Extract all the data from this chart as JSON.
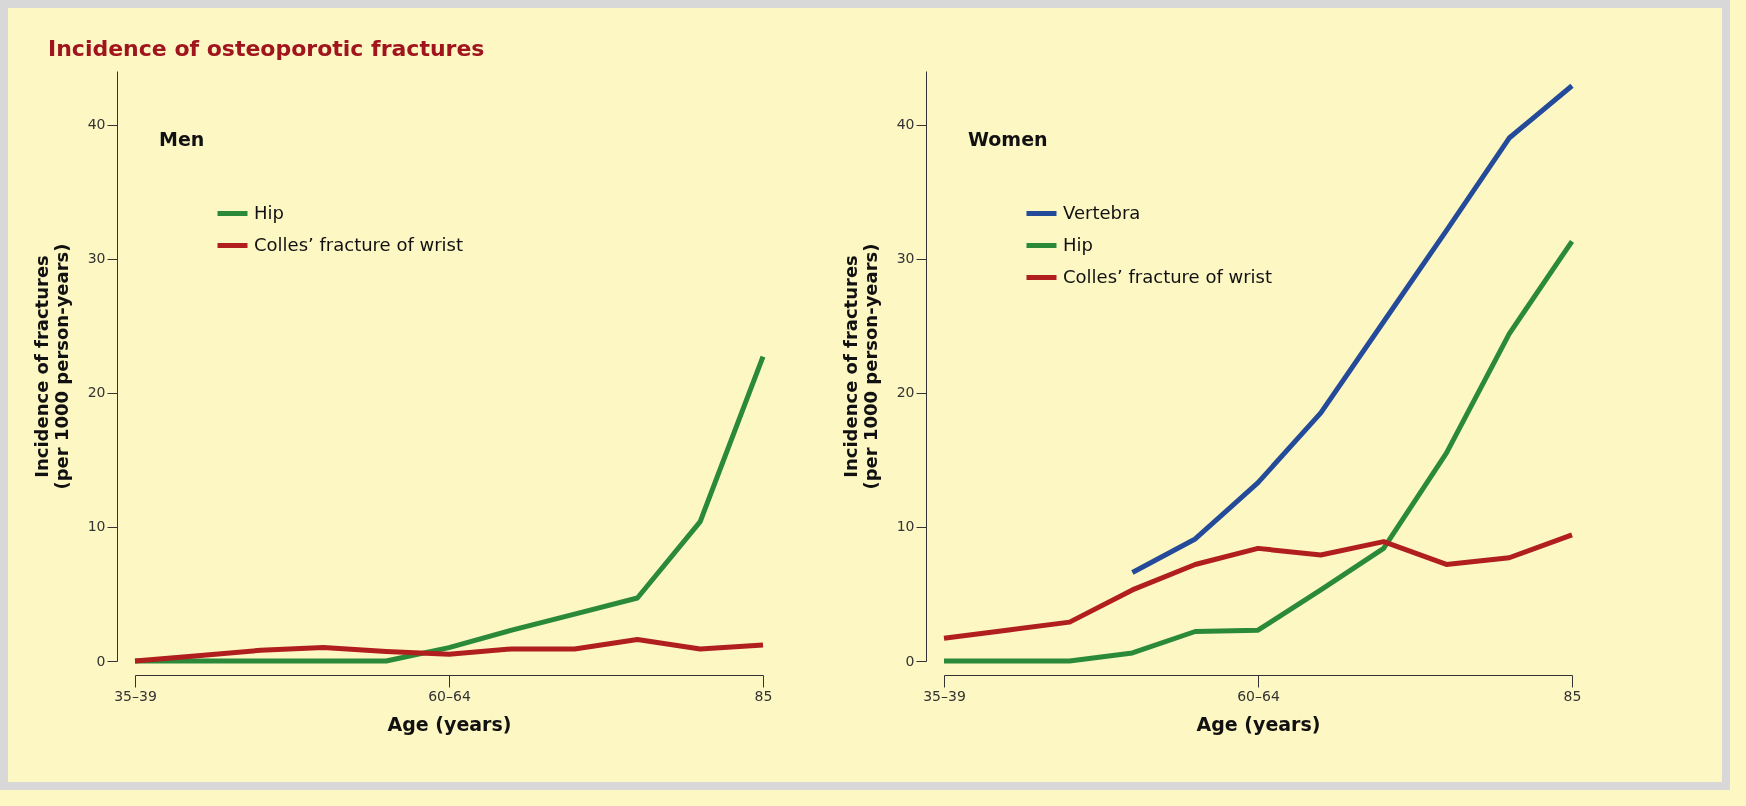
{
  "chart_data": [
    {
      "type": "line",
      "title": "Incidence of osteoporotic fractures",
      "subtitle": "Men",
      "xlabel": "Age (years)",
      "ylabel": "Incidence of fractures\n(per 1000 person-years)",
      "categories": [
        "35–39",
        null,
        null,
        null,
        null,
        "60–64",
        null,
        null,
        null,
        null,
        "85"
      ],
      "ylim": [
        0,
        44
      ],
      "yticks": [
        0,
        10,
        20,
        30,
        40
      ],
      "grid": false,
      "legend": "top left",
      "line_style": "solid",
      "series": [
        {
          "name": "Hip",
          "color": "#2a8a3a",
          "values": [
            0,
            0,
            0,
            0,
            0,
            1,
            2.3,
            3.5,
            4.7,
            10.4,
            22.7
          ]
        },
        {
          "name": "Colles’ fracture of wrist",
          "color": "#b01e1e",
          "values": [
            0,
            0.4,
            0.8,
            1,
            0.7,
            0.5,
            0.9,
            0.9,
            1.6,
            0.9,
            1.2
          ]
        }
      ]
    },
    {
      "type": "line",
      "subtitle": "Women",
      "xlabel": "Age (years)",
      "ylabel": "Incidence of fractures\n(per 1000 person-years)",
      "categories": [
        "35–39",
        null,
        null,
        null,
        null,
        "60–64",
        null,
        null,
        null,
        null,
        "85"
      ],
      "ylim": [
        0,
        44
      ],
      "yticks": [
        0,
        10,
        20,
        30,
        40
      ],
      "grid": false,
      "legend": "top left",
      "line_style": "solid",
      "series": [
        {
          "name": "Vertebra",
          "color": "#244a9a",
          "values": [
            null,
            null,
            null,
            6.6,
            9.1,
            13.3,
            18.5,
            25.3,
            32.1,
            39,
            42.9
          ]
        },
        {
          "name": "Hip",
          "color": "#2a8a3a",
          "values": [
            0,
            0,
            0,
            0.6,
            2.2,
            2.3,
            5.3,
            8.4,
            15.5,
            24.4,
            31.3
          ]
        },
        {
          "name": "Colles’ fracture of wrist",
          "color": "#b01e1e",
          "values": [
            1.7,
            2.3,
            2.9,
            5.3,
            7.2,
            8.4,
            7.9,
            8.9,
            7.2,
            7.7,
            9.4
          ]
        }
      ]
    }
  ]
}
